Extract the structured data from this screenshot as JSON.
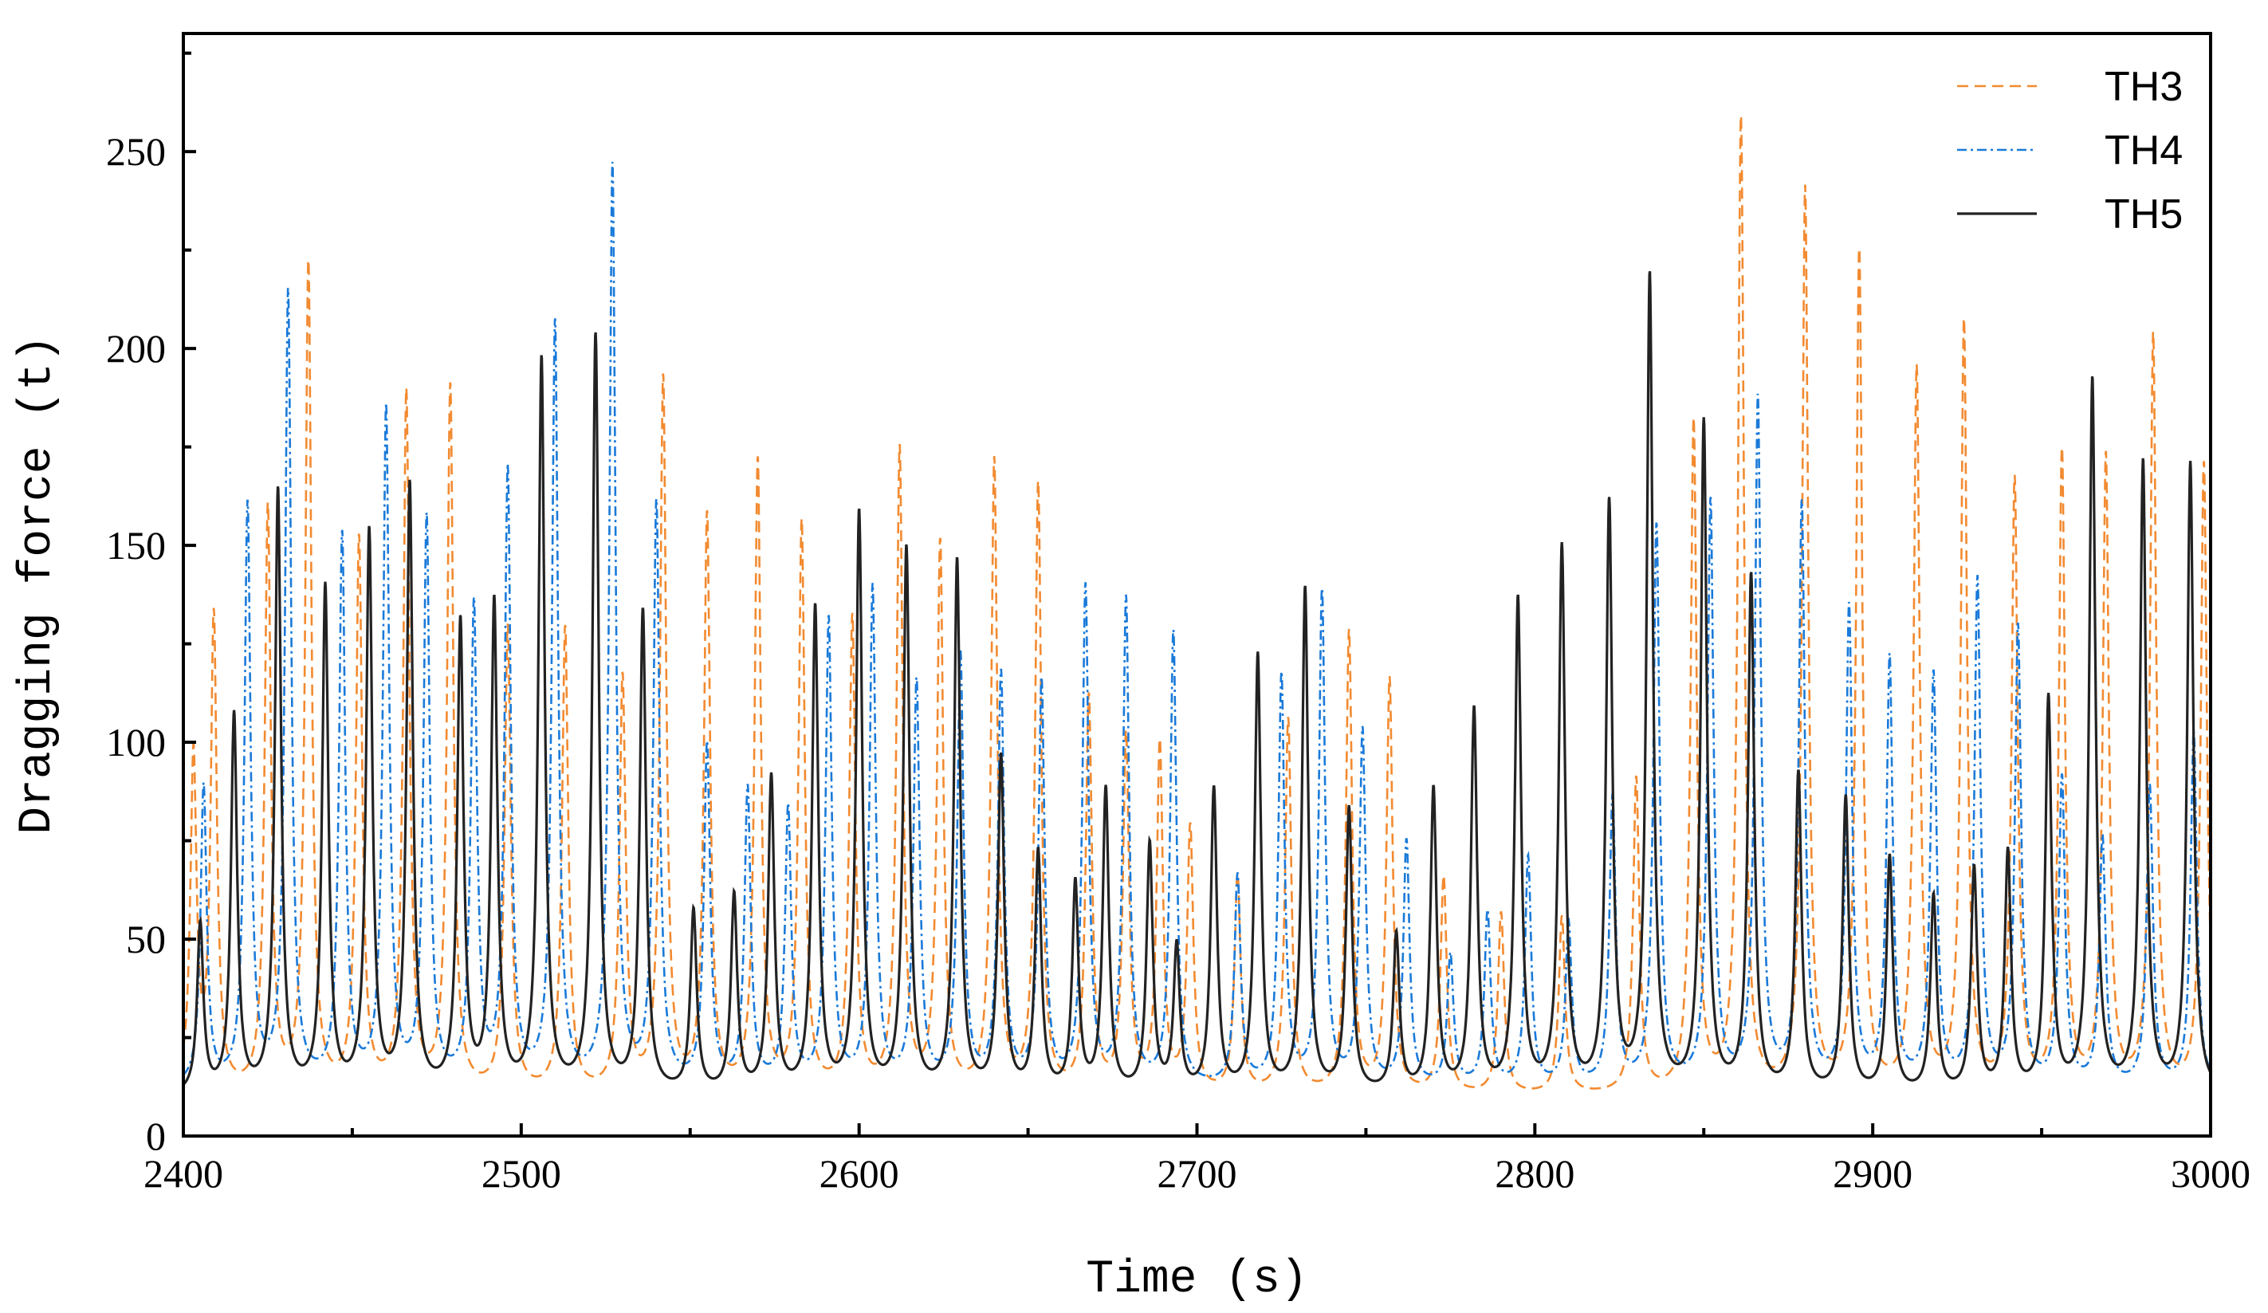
{
  "chart_data": {
    "type": "line",
    "title": "",
    "xlabel": "Time  (s)",
    "ylabel": "Dragging force (t)",
    "xlim": [
      2400,
      3000
    ],
    "ylim": [
      0,
      280
    ],
    "x_ticks": [
      2400,
      2500,
      2600,
      2700,
      2800,
      2900,
      3000
    ],
    "y_ticks": [
      0,
      50,
      100,
      150,
      200,
      250
    ],
    "grid": false,
    "legend_position": "top-right",
    "series": [
      {
        "name": "TH3",
        "color": "#f28a30",
        "dash": "dashed",
        "peaks": [
          [
            2403,
            95
          ],
          [
            2409,
            130
          ],
          [
            2425,
            158
          ],
          [
            2437,
            220
          ],
          [
            2452,
            150
          ],
          [
            2466,
            187
          ],
          [
            2479,
            189
          ],
          [
            2496,
            128
          ],
          [
            2513,
            128
          ],
          [
            2530,
            115
          ],
          [
            2542,
            191
          ],
          [
            2555,
            156
          ],
          [
            2570,
            170
          ],
          [
            2583,
            154
          ],
          [
            2598,
            130
          ],
          [
            2612,
            173
          ],
          [
            2624,
            149
          ],
          [
            2640,
            170
          ],
          [
            2653,
            164
          ],
          [
            2668,
            110
          ],
          [
            2679,
            100
          ],
          [
            2689,
            98
          ],
          [
            2698,
            77
          ],
          [
            2712,
            65
          ],
          [
            2727,
            105
          ],
          [
            2745,
            127
          ],
          [
            2757,
            115
          ],
          [
            2773,
            65
          ],
          [
            2790,
            56
          ],
          [
            2808,
            55
          ],
          [
            2830,
            90
          ],
          [
            2847,
            180
          ],
          [
            2861,
            257
          ],
          [
            2880,
            239
          ],
          [
            2896,
            223
          ],
          [
            2913,
            193
          ],
          [
            2927,
            205
          ],
          [
            2942,
            165
          ],
          [
            2956,
            172
          ],
          [
            2969,
            171
          ],
          [
            2983,
            202
          ],
          [
            2998,
            170
          ]
        ],
        "baseline": 10
      },
      {
        "name": "TH4",
        "color": "#1a7ad9",
        "dash": "dash-dot",
        "peaks": [
          [
            2406,
            88
          ],
          [
            2419,
            159
          ],
          [
            2431,
            213
          ],
          [
            2447,
            151
          ],
          [
            2460,
            183
          ],
          [
            2472,
            155
          ],
          [
            2486,
            133
          ],
          [
            2496,
            167
          ],
          [
            2510,
            205
          ],
          [
            2527,
            245
          ],
          [
            2540,
            159
          ],
          [
            2555,
            98
          ],
          [
            2567,
            87
          ],
          [
            2579,
            82
          ],
          [
            2591,
            130
          ],
          [
            2604,
            138
          ],
          [
            2617,
            114
          ],
          [
            2630,
            121
          ],
          [
            2642,
            116
          ],
          [
            2654,
            114
          ],
          [
            2667,
            138
          ],
          [
            2679,
            135
          ],
          [
            2693,
            127
          ],
          [
            2712,
            65
          ],
          [
            2725,
            116
          ],
          [
            2737,
            137
          ],
          [
            2749,
            102
          ],
          [
            2762,
            74
          ],
          [
            2775,
            45
          ],
          [
            2786,
            56
          ],
          [
            2798,
            70
          ],
          [
            2810,
            53
          ],
          [
            2823,
            85
          ],
          [
            2836,
            154
          ],
          [
            2852,
            160
          ],
          [
            2866,
            186
          ],
          [
            2879,
            159
          ],
          [
            2893,
            133
          ],
          [
            2905,
            120
          ],
          [
            2918,
            116
          ],
          [
            2931,
            140
          ],
          [
            2943,
            128
          ],
          [
            2956,
            90
          ],
          [
            2968,
            75
          ],
          [
            2982,
            88
          ],
          [
            2995,
            102
          ]
        ],
        "baseline": 12
      },
      {
        "name": "TH5",
        "color": "#222222",
        "dash": "solid",
        "peaks": [
          [
            2405,
            53
          ],
          [
            2415,
            106
          ],
          [
            2428,
            163
          ],
          [
            2442,
            138
          ],
          [
            2455,
            152
          ],
          [
            2467,
            164
          ],
          [
            2482,
            129
          ],
          [
            2492,
            134
          ],
          [
            2506,
            196
          ],
          [
            2522,
            202
          ],
          [
            2536,
            132
          ],
          [
            2551,
            56
          ],
          [
            2563,
            60
          ],
          [
            2574,
            90
          ],
          [
            2587,
            133
          ],
          [
            2600,
            157
          ],
          [
            2614,
            148
          ],
          [
            2629,
            145
          ],
          [
            2642,
            95
          ],
          [
            2653,
            71
          ],
          [
            2664,
            63
          ],
          [
            2673,
            87
          ],
          [
            2686,
            73
          ],
          [
            2694,
            47
          ],
          [
            2705,
            87
          ],
          [
            2718,
            121
          ],
          [
            2732,
            138
          ],
          [
            2745,
            82
          ],
          [
            2759,
            50
          ],
          [
            2770,
            87
          ],
          [
            2782,
            107
          ],
          [
            2795,
            135
          ],
          [
            2808,
            148
          ],
          [
            2822,
            159
          ],
          [
            2834,
            217
          ],
          [
            2850,
            180
          ],
          [
            2864,
            141
          ],
          [
            2878,
            91
          ],
          [
            2892,
            85
          ],
          [
            2905,
            70
          ],
          [
            2918,
            60
          ],
          [
            2930,
            67
          ],
          [
            2940,
            71
          ],
          [
            2952,
            110
          ],
          [
            2965,
            191
          ],
          [
            2980,
            170
          ],
          [
            2994,
            170
          ]
        ],
        "baseline": 10
      }
    ]
  }
}
